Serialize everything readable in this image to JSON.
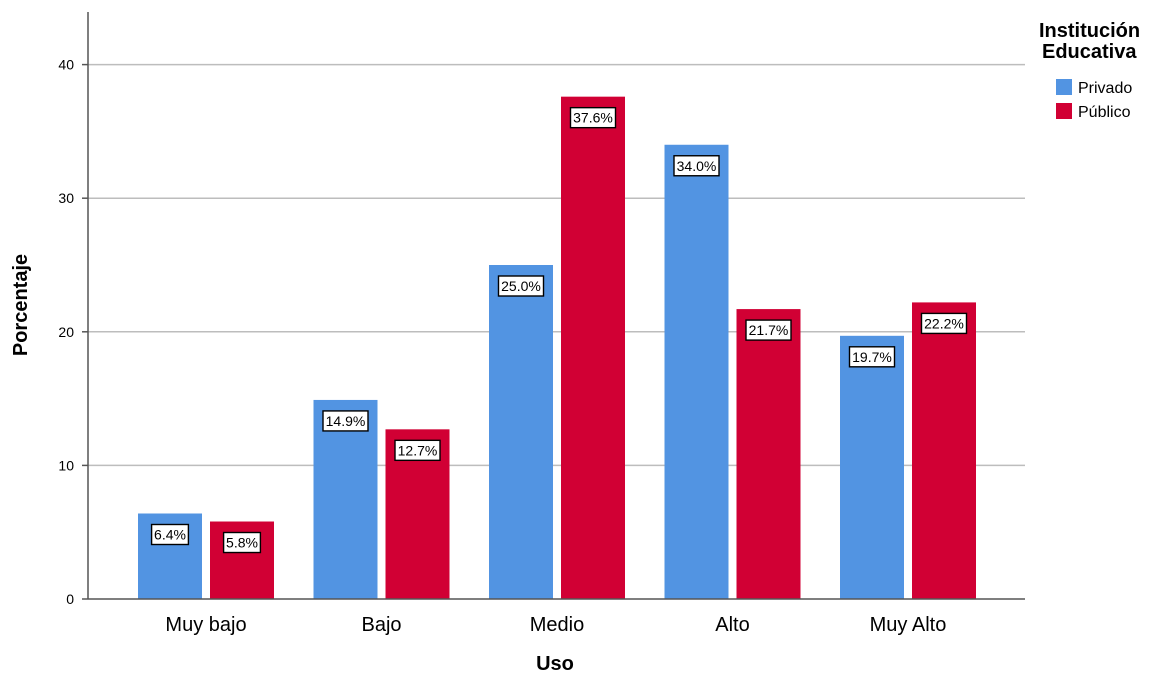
{
  "chart_data": {
    "type": "bar",
    "xlabel": "Uso",
    "ylabel": "Porcentaje",
    "ylim": [
      0,
      43
    ],
    "yticks": [
      0,
      10,
      20,
      30,
      40
    ],
    "grid": true,
    "legend_placement": "top-right",
    "legend_title": [
      "Institución",
      "Educativa"
    ],
    "categories": [
      "Muy bajo",
      "Bajo",
      "Medio",
      "Alto",
      "Muy Alto"
    ],
    "series": [
      {
        "name": "Privado",
        "color": "#5294e2",
        "values": [
          6.4,
          14.9,
          25.0,
          34.0,
          19.7
        ],
        "labels": [
          "6.4%",
          "14.9%",
          "25.0%",
          "34.0%",
          "19.7%"
        ]
      },
      {
        "name": "Público",
        "color": "#d10034",
        "values": [
          5.8,
          12.7,
          37.6,
          21.7,
          22.2
        ],
        "labels": [
          "5.8%",
          "12.7%",
          "37.6%",
          "21.7%",
          "22.2%"
        ]
      }
    ]
  }
}
